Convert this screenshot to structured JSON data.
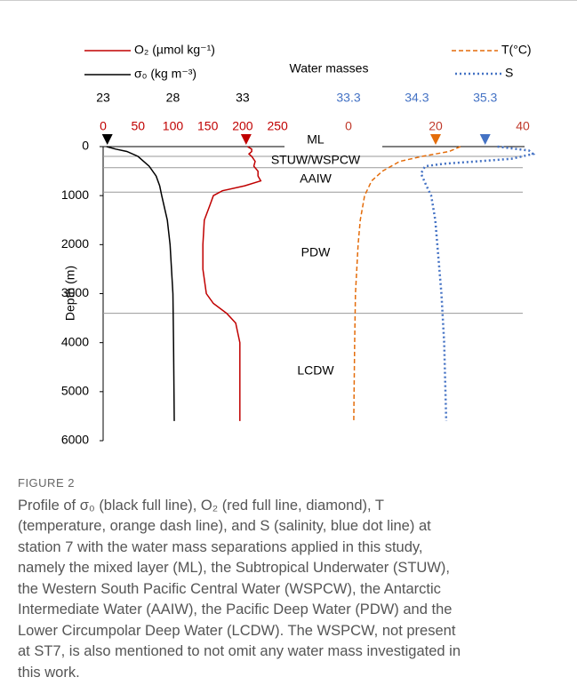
{
  "chart_data": {
    "type": "profile",
    "title": "Water masses",
    "ylabel": "Depth (m)",
    "ylim": [
      0,
      6000
    ],
    "yticks": [
      0,
      1000,
      2000,
      3000,
      4000,
      5000,
      6000
    ],
    "series": [
      {
        "name": "O₂ (µmol kg⁻¹)",
        "color": "#c00000",
        "dash": "solid",
        "xlim": [
          0,
          260
        ],
        "xticks": [
          0,
          50,
          100,
          150,
          200,
          250
        ],
        "arrow": 205,
        "depth": [
          0,
          50,
          100,
          150,
          200,
          300,
          400,
          500,
          600,
          700,
          800,
          900,
          1000,
          1200,
          1500,
          2000,
          2500,
          3000,
          3200,
          3400,
          3600,
          4000,
          5000,
          5600
        ],
        "values": [
          207,
          213,
          213,
          209,
          213,
          218,
          216,
          222,
          222,
          226,
          203,
          171,
          158,
          153,
          145,
          143,
          143,
          148,
          158,
          177,
          190,
          196,
          196,
          196
        ]
      },
      {
        "name": "σ₀ (kg m⁻³)",
        "color": "#000000",
        "dash": "solid",
        "xlim": [
          23,
          36
        ],
        "xticks": [
          23,
          28,
          33
        ],
        "arrow": 23.3,
        "depth": [
          0,
          50,
          100,
          200,
          400,
          600,
          800,
          1000,
          1500,
          2000,
          3000,
          4000,
          5600
        ],
        "values": [
          23.25,
          23.9,
          24.7,
          25.5,
          26.3,
          26.8,
          27.05,
          27.2,
          27.6,
          27.8,
          28.0,
          28.05,
          28.1
        ]
      },
      {
        "name": "T(°C)",
        "color": "#e46c0a",
        "dash": "dash",
        "xlim": [
          0,
          40
        ],
        "xticks": [
          0,
          20,
          40
        ],
        "arrow": 20,
        "depth": [
          0,
          100,
          200,
          300,
          500,
          700,
          1000,
          1500,
          2000,
          3000,
          4000,
          5600
        ],
        "values": [
          25.7,
          23.1,
          16.9,
          11.8,
          7.8,
          5.3,
          3.7,
          2.7,
          2.2,
          1.6,
          1.4,
          1.2
        ]
      },
      {
        "name": "S",
        "color": "#4472c4",
        "dash": "dot",
        "xlim": [
          33.3,
          35.85
        ],
        "xticks": [
          33.3,
          34.3,
          35.3
        ],
        "arrow": 35.3,
        "depth": [
          0,
          80,
          150,
          250,
          350,
          400,
          550,
          800,
          1000,
          1500,
          2000,
          3000,
          4000,
          5600
        ],
        "values": [
          35.48,
          35.94,
          36.0,
          35.68,
          34.7,
          34.42,
          34.36,
          34.44,
          34.51,
          34.57,
          34.6,
          34.66,
          34.7,
          34.73
        ]
      }
    ],
    "boundaries": [
      200,
      430,
      930,
      3400
    ],
    "water_masses": [
      "ML",
      "STUW/WSPCW",
      "AAIW",
      "PDW",
      "LCDW"
    ]
  },
  "caption": {
    "label": "FIGURE 2",
    "lines": [
      "Profile of σ₀ (black full line), O₂ (red full line, diamond), T",
      "(temperature, orange dash line), and S (salinity, blue dot line) at",
      "station 7 with the water mass separations applied in this study,",
      "namely the mixed layer (ML), the Subtropical Underwater (STUW),",
      "the Western South Pacific Central Water (WSPCW), the Antarctic",
      "Intermediate Water (AAIW), the Pacific Deep Water (PDW) and the",
      "Lower Circumpolar Deep Water (LCDW). The WSPCW, not present",
      "at ST7, is also mentioned to not omit any water mass investigated in",
      "this work."
    ]
  }
}
